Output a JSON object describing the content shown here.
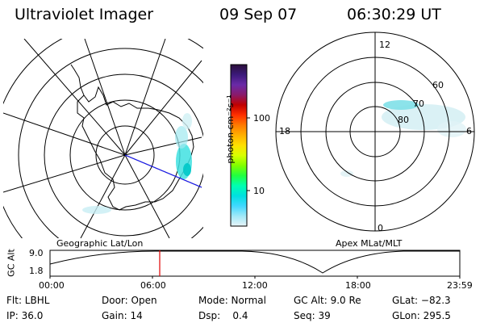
{
  "header": {
    "title": "Ultraviolet Imager",
    "date": "09 Sep 07",
    "time": "06:30:29 UT"
  },
  "colorbar": {
    "unit_label": "photon cm⁻²s⁻¹",
    "ticks": [
      "100",
      "10"
    ],
    "stops": [
      "#2b0f3a",
      "#3b1a7a",
      "#6a2aa8",
      "#8a1a6a",
      "#c00000",
      "#ff3000",
      "#ff7a00",
      "#ffb000",
      "#ffe000",
      "#d8ff00",
      "#80ff00",
      "#20ff40",
      "#00ffb0",
      "#00e0e0",
      "#40d8ff",
      "#a0e8f8",
      "#e8f4f8"
    ]
  },
  "geo_map": {
    "caption": "Geographic Lat/Lon"
  },
  "apex_map": {
    "caption": "Apex MLat/MLT",
    "mlt_labels": [
      "12",
      "18",
      "6",
      "0"
    ],
    "lat_labels": [
      "60",
      "70",
      "80"
    ]
  },
  "altitude_plot": {
    "y_axis_label": "GC Alt",
    "y_ticks": [
      "9.0",
      "1.8"
    ],
    "x_ticks": [
      "00:00",
      "06:00",
      "12:00",
      "18:00",
      "23:59"
    ],
    "marker_color": "#e00000"
  },
  "info_rows": [
    [
      "Flt: LBHL",
      "Door: Open",
      "Mode: Normal",
      "GC Alt: 9.0 Re",
      "GLat: −82.3"
    ],
    [
      "IP: 36.0",
      "Gain: 14",
      "Dsp:    0.4",
      "Seq: 39",
      "GLon: 295.5"
    ]
  ]
}
